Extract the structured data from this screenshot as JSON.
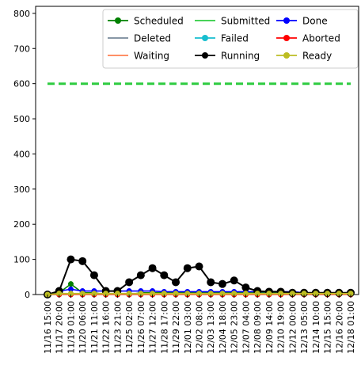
{
  "chart_data": {
    "type": "line",
    "title": "",
    "xlabel": "",
    "ylabel": "",
    "ylim": [
      0,
      820
    ],
    "grid": false,
    "legend": {
      "placement": "top-right",
      "columns": 3
    },
    "yticks": [
      0,
      100,
      200,
      300,
      400,
      500,
      600,
      700,
      800
    ],
    "x": [
      "11/16 15:00",
      "11/17 20:00",
      "11/19 01:00",
      "11/20 06:00",
      "11/21 11:00",
      "11/22 16:00",
      "11/23 21:00",
      "11/25 02:00",
      "11/26 07:00",
      "11/27 12:00",
      "11/28 17:00",
      "11/29 22:00",
      "12/01 03:00",
      "12/02 08:00",
      "12/03 13:00",
      "12/04 18:00",
      "12/05 23:00",
      "12/07 04:00",
      "12/08 09:00",
      "12/09 14:00",
      "12/10 19:00",
      "12/12 00:00",
      "12/13 05:00",
      "12/14 10:00",
      "12/15 15:00",
      "12/16 20:00",
      "12/18 01:00"
    ],
    "series": [
      {
        "name": "Scheduled",
        "color": "#008000",
        "marker": true,
        "values": [
          0,
          5,
          30,
          5,
          5,
          0,
          0,
          0,
          5,
          5,
          5,
          5,
          5,
          5,
          5,
          5,
          5,
          5,
          5,
          5,
          5,
          5,
          5,
          5,
          5,
          5,
          5
        ]
      },
      {
        "name": "Submitted",
        "color": "#2ecc40",
        "marker": false,
        "values": [
          600,
          600,
          600,
          600,
          600,
          600,
          600,
          600,
          600,
          600,
          600,
          600,
          600,
          600,
          600,
          600,
          600,
          600,
          600,
          600,
          600,
          600,
          600,
          600,
          600,
          600,
          600
        ]
      },
      {
        "name": "Done",
        "color": "#0000ff",
        "marker": true,
        "values": [
          0,
          10,
          15,
          10,
          10,
          10,
          10,
          10,
          10,
          10,
          8,
          8,
          8,
          8,
          8,
          8,
          8,
          8,
          8,
          8,
          8,
          8,
          5,
          5,
          5,
          5,
          5
        ]
      },
      {
        "name": "Deleted",
        "color": "#778899",
        "marker": false,
        "values": [
          0,
          0,
          0,
          0,
          0,
          0,
          0,
          0,
          0,
          0,
          0,
          0,
          0,
          0,
          0,
          0,
          0,
          0,
          0,
          0,
          0,
          0,
          0,
          0,
          0,
          0,
          0
        ]
      },
      {
        "name": "Failed",
        "color": "#17becf",
        "marker": true,
        "values": [
          0,
          0,
          0,
          0,
          0,
          0,
          0,
          0,
          0,
          0,
          0,
          0,
          0,
          0,
          0,
          0,
          0,
          0,
          0,
          0,
          0,
          0,
          0,
          0,
          0,
          0,
          0
        ]
      },
      {
        "name": "Aborted",
        "color": "#ff0000",
        "marker": true,
        "values": [
          0,
          0,
          0,
          0,
          0,
          0,
          0,
          0,
          0,
          0,
          0,
          0,
          0,
          0,
          0,
          0,
          0,
          0,
          0,
          0,
          0,
          0,
          0,
          0,
          0,
          0,
          0
        ]
      },
      {
        "name": "Waiting",
        "color": "#ff7f50",
        "marker": false,
        "values": [
          0,
          0,
          0,
          0,
          0,
          0,
          0,
          0,
          0,
          0,
          0,
          0,
          0,
          0,
          0,
          0,
          0,
          0,
          0,
          0,
          0,
          0,
          0,
          0,
          0,
          0,
          0
        ]
      },
      {
        "name": "Running",
        "color": "#000000",
        "marker": true,
        "values": [
          0,
          10,
          100,
          95,
          55,
          10,
          10,
          35,
          55,
          75,
          55,
          35,
          75,
          80,
          35,
          30,
          40,
          20,
          10,
          8,
          8,
          5,
          5,
          5,
          5,
          5,
          5
        ]
      },
      {
        "name": "Ready",
        "color": "#bcbd22",
        "marker": true,
        "values": [
          0,
          3,
          3,
          3,
          3,
          3,
          3,
          3,
          3,
          3,
          3,
          3,
          3,
          3,
          3,
          3,
          3,
          3,
          3,
          3,
          3,
          3,
          3,
          3,
          3,
          3,
          3
        ]
      }
    ]
  },
  "legend_order": [
    "Scheduled",
    "Submitted",
    "Done",
    "Deleted",
    "Failed",
    "Aborted",
    "Waiting",
    "Running",
    "Ready"
  ]
}
